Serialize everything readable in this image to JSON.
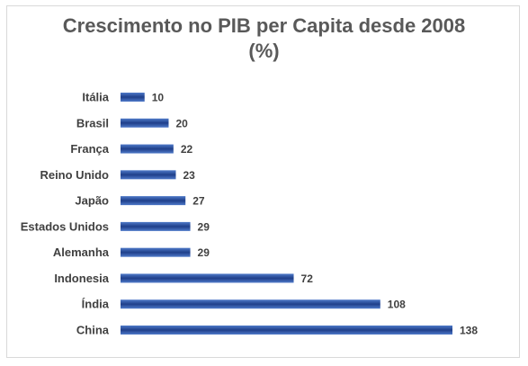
{
  "chart_data": {
    "type": "bar",
    "orientation": "horizontal",
    "title_line1": "Crescimento no PIB per Capita desde 2008",
    "title_line2": "(%)",
    "categories": [
      "Itália",
      "Brasil",
      "França",
      "Reino Unido",
      "Japão",
      "Estados Unidos",
      "Alemanha",
      "Indonesia",
      "Índia",
      "China"
    ],
    "values": [
      10,
      20,
      22,
      23,
      27,
      29,
      29,
      72,
      108,
      138
    ],
    "xlim": [
      0,
      138
    ],
    "data_labels": true,
    "grid": false,
    "legend": "none",
    "colors": {
      "bar_light": "#4f7ac9",
      "bar_dark": "#1f3f8a",
      "text": "#404040",
      "title": "#595959"
    }
  }
}
